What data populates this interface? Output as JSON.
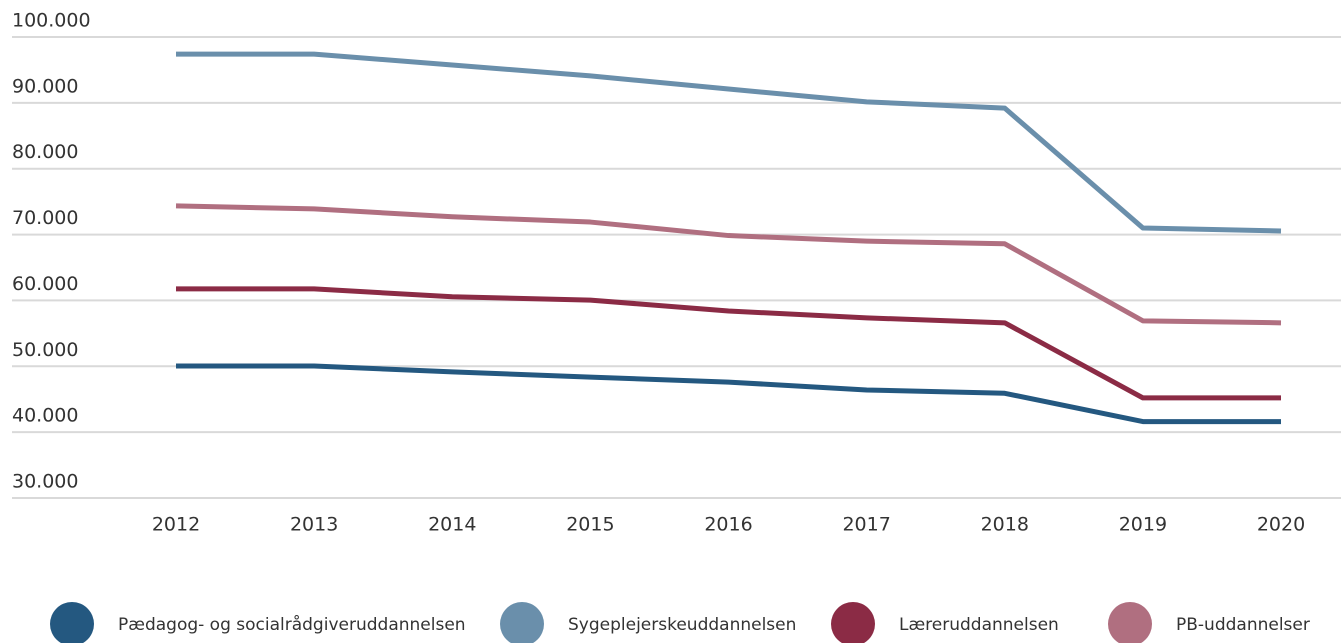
{
  "chart_data": {
    "type": "line",
    "categories": [
      "2012",
      "2013",
      "2014",
      "2015",
      "2016",
      "2017",
      "2018",
      "2019",
      "2020"
    ],
    "series": [
      {
        "name": "Pædagog- og socialrådgiveruddannelsen",
        "color": "#245880",
        "values": [
          50050,
          50050,
          49150,
          48350,
          47600,
          46400,
          45900,
          41600,
          41600
        ]
      },
      {
        "name": "Sygeplejerskeuddannelsen",
        "color": "#6a8fab",
        "values": [
          97400,
          97400,
          95750,
          94100,
          92100,
          90150,
          89200,
          71000,
          70550
        ]
      },
      {
        "name": "Læreruddannelsen",
        "color": "#8b2b45",
        "values": [
          61750,
          61750,
          60550,
          60050,
          58400,
          57350,
          56600,
          45200,
          45200
        ]
      },
      {
        "name": "PB-uddannelser",
        "color": "#b06f80",
        "values": [
          74350,
          73900,
          72700,
          71900,
          69850,
          69000,
          68600,
          56900,
          56600
        ]
      }
    ],
    "ylim": [
      30000,
      100000
    ],
    "yticks": [
      {
        "value": 30000,
        "label": "30.000"
      },
      {
        "value": 40000,
        "label": "40.000"
      },
      {
        "value": 50000,
        "label": "50.000"
      },
      {
        "value": 60000,
        "label": "60.000"
      },
      {
        "value": 70000,
        "label": "70.000"
      },
      {
        "value": 80000,
        "label": "80.000"
      },
      {
        "value": 90000,
        "label": "90.000"
      },
      {
        "value": 100000,
        "label": "100.000"
      }
    ],
    "grid": true,
    "legend": "bottom"
  }
}
